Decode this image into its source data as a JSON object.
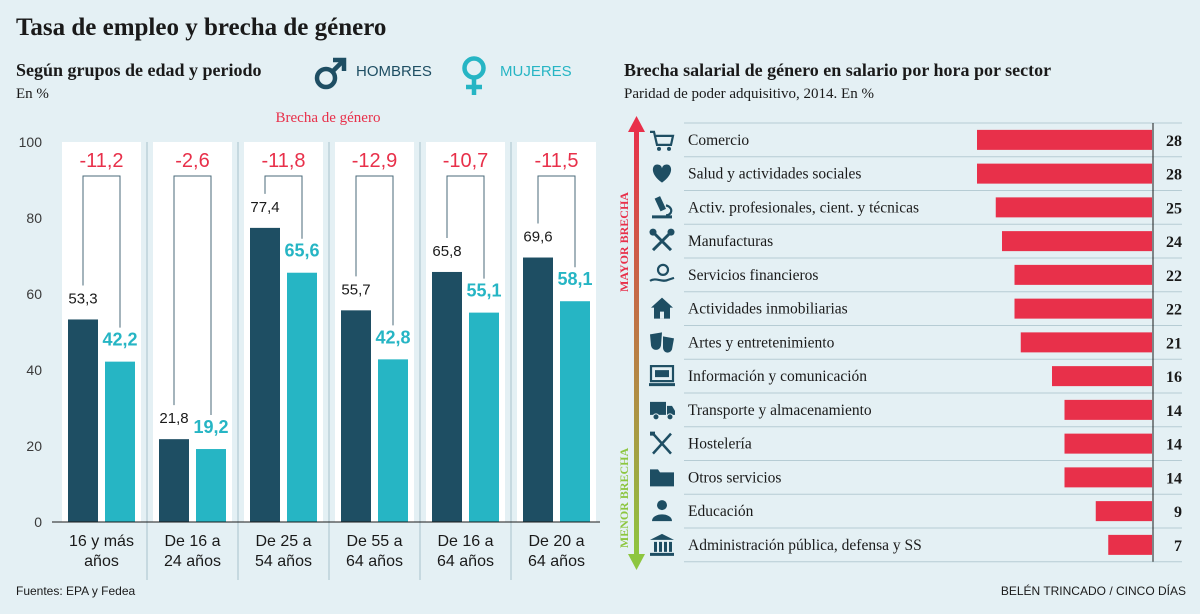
{
  "title": "Tasa de empleo y brecha de género",
  "left": {
    "subtitle": "Según grupos de edad y periodo",
    "unit": "En %",
    "gap_header": "Brecha de género",
    "legend": {
      "men": "HOMBRES",
      "women": "MUJERES"
    }
  },
  "right": {
    "title": "Brecha salarial de género en salario por hora por sector",
    "subtitle": "Paridad de poder adquisitivo, 2014. En %",
    "axis_top": "MAYOR BRECHA",
    "axis_bottom": "MENOR BRECHA"
  },
  "sources": "Fuentes: EPA y Fedea",
  "credit": "BELÉN TRINCADO / CINCO DÍAS",
  "colors": {
    "men": "#1e4e63",
    "women": "#26b5c4",
    "gap": "#e8304a",
    "background": "#e4f0f4",
    "gradient_top": "#e8304a",
    "gradient_bottom": "#8dc63f"
  },
  "chart_data": [
    {
      "type": "bar",
      "title": "Según grupos de edad y periodo",
      "ylabel": "En %",
      "ylim": [
        0,
        100
      ],
      "yticks": [
        "0",
        "20",
        "40",
        "60",
        "80",
        "100"
      ],
      "categories": [
        [
          "16 y más",
          "años"
        ],
        [
          "De 16 a",
          "24 años"
        ],
        [
          "De 25 a",
          "54 años"
        ],
        [
          "De 55 a",
          "64 años"
        ],
        [
          "De 16 a",
          "64 años"
        ],
        [
          "De 20 a",
          "64 años"
        ]
      ],
      "series": [
        {
          "name": "HOMBRES",
          "values": [
            53.3,
            21.8,
            77.4,
            55.7,
            65.8,
            69.6
          ],
          "labels": [
            "53,3",
            "21,8",
            "77,4",
            "55,7",
            "65,8",
            "69,6"
          ]
        },
        {
          "name": "MUJERES",
          "values": [
            42.2,
            19.2,
            65.6,
            42.8,
            55.1,
            58.1
          ],
          "labels": [
            "42,2",
            "19,2",
            "65,6",
            "42,8",
            "55,1",
            "58,1"
          ]
        }
      ],
      "gap": {
        "name": "Brecha de género",
        "values": [
          -11.2,
          -2.6,
          -11.8,
          -12.9,
          -10.7,
          -11.5
        ],
        "labels": [
          "-11,2",
          "-2,6",
          "-11,8",
          "-12,9",
          "-10,7",
          "-11,5"
        ]
      }
    },
    {
      "type": "bar",
      "orientation": "horizontal",
      "title": "Brecha salarial de género en salario por hora por sector",
      "xlim": [
        0,
        30
      ],
      "categories": [
        "Comercio",
        "Salud y actividades sociales",
        "Activ. profesionales, cient. y técnicas",
        "Manufacturas",
        "Servicios financieros",
        "Actividades inmobiliarias",
        "Artes y entretenimiento",
        "Información y comunicación",
        "Transporte y almacenamiento",
        "Hostelería",
        "Otros servicios",
        "Educación",
        "Administración pública, defensa y SS"
      ],
      "values": [
        28,
        28,
        25,
        24,
        22,
        22,
        21,
        16,
        14,
        14,
        14,
        9,
        7
      ],
      "icons": [
        "cart-icon",
        "heart-icon",
        "microscope-icon",
        "tools-icon",
        "money-hand-icon",
        "house-icon",
        "masks-icon",
        "computer-icon",
        "truck-icon",
        "cutlery-icon",
        "folder-icon",
        "teacher-icon",
        "building-icon"
      ]
    }
  ]
}
